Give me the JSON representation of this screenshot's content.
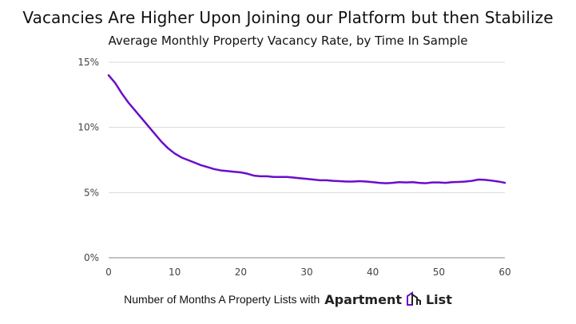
{
  "title": "Vacancies Are Higher Upon Joining our Platform but then Stabilize",
  "subtitle": "Average Monthly Property Vacancy Rate, by Time In Sample",
  "footer": {
    "text": "Number of Months A Property Lists with",
    "logo": {
      "word1": "Apartment",
      "word2": "List",
      "icon": "apartment-list-logo-icon"
    }
  },
  "colors": {
    "line": "#6a0dca",
    "grid": "#d9d9d9",
    "axis": "#888888"
  },
  "chart_data": {
    "type": "line",
    "title": "Vacancies Are Higher Upon Joining our Platform but then Stabilize",
    "subtitle": "Average Monthly Property Vacancy Rate, by Time In Sample",
    "xlabel": "Number of Months A Property Lists with Apartment List",
    "ylabel": "",
    "xlim": [
      0,
      60
    ],
    "ylim": [
      0,
      15
    ],
    "x_ticks": [
      0,
      10,
      20,
      30,
      40,
      50,
      60
    ],
    "y_ticks": [
      0,
      5,
      10,
      15
    ],
    "y_tick_labels": [
      "0%",
      "5%",
      "10%",
      "15%"
    ],
    "grid": true,
    "series": [
      {
        "x": [
          0,
          1,
          2,
          3,
          4,
          5,
          6,
          7,
          8,
          9,
          10,
          11,
          12,
          13,
          14,
          15,
          16,
          17,
          18,
          19,
          20,
          21,
          22,
          23,
          24,
          25,
          26,
          27,
          28,
          29,
          30,
          31,
          32,
          33,
          34,
          35,
          36,
          37,
          38,
          39,
          40,
          41,
          42,
          43,
          44,
          45,
          46,
          47,
          48,
          49,
          50,
          51,
          52,
          53,
          54,
          55,
          56,
          57,
          58,
          59,
          60
        ],
        "values": [
          14.0,
          13.4,
          12.6,
          11.9,
          11.3,
          10.7,
          10.1,
          9.5,
          8.9,
          8.4,
          8.0,
          7.7,
          7.5,
          7.3,
          7.1,
          6.95,
          6.8,
          6.7,
          6.65,
          6.6,
          6.55,
          6.45,
          6.3,
          6.25,
          6.25,
          6.2,
          6.2,
          6.2,
          6.15,
          6.1,
          6.05,
          6.0,
          5.95,
          5.95,
          5.9,
          5.88,
          5.85,
          5.85,
          5.88,
          5.85,
          5.8,
          5.75,
          5.72,
          5.75,
          5.8,
          5.78,
          5.8,
          5.75,
          5.72,
          5.78,
          5.78,
          5.75,
          5.8,
          5.82,
          5.85,
          5.9,
          6.0,
          5.98,
          5.92,
          5.85,
          5.75
        ]
      }
    ]
  }
}
